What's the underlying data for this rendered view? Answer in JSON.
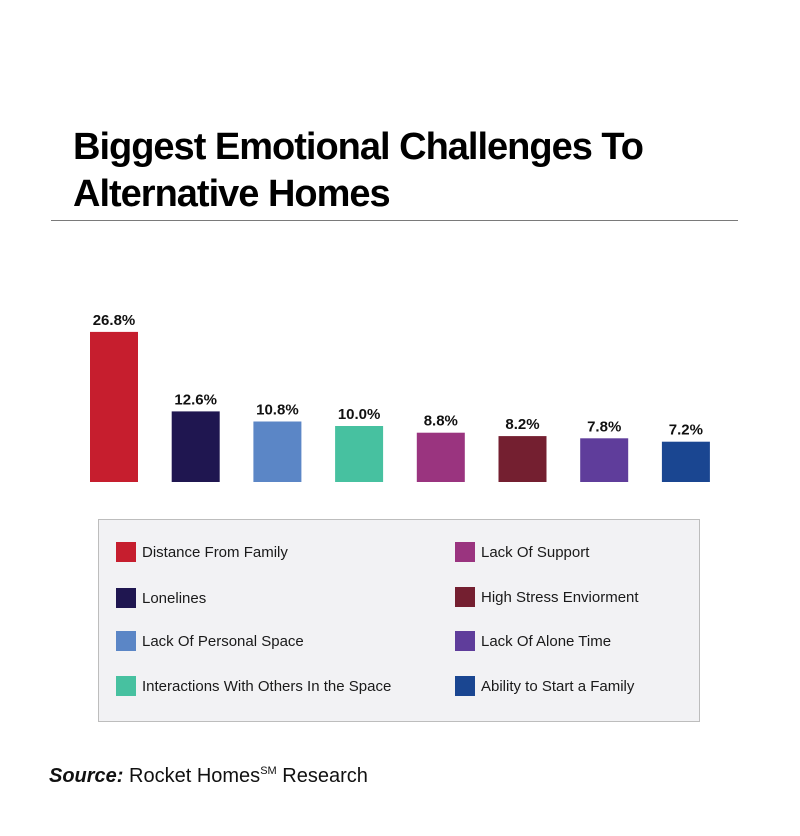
{
  "title_line1": "Biggest Emotional Challenges To",
  "title_line2": "Alternative Homes",
  "chart_data": {
    "type": "bar",
    "title": "Biggest Emotional Challenges To Alternative Homes",
    "categories": [
      "Distance From Family",
      "Lonelines",
      "Lack Of Personal Space",
      "Interactions With Others In the Space",
      "Lack Of Support",
      "High Stress Enviorment",
      "Lack Of Alone Time",
      "Ability to Start a Family"
    ],
    "values": [
      26.8,
      12.6,
      10.8,
      10.0,
      8.8,
      8.2,
      7.8,
      7.2
    ],
    "labels": [
      "26.8%",
      "12.6%",
      "10.8%",
      "10.0%",
      "8.8%",
      "8.2%",
      "7.8%",
      "7.2%"
    ],
    "colors": [
      "#c61e2e",
      "#1f1650",
      "#5b86c6",
      "#47c1a0",
      "#9a347f",
      "#741f30",
      "#5f3d9b",
      "#1a4691"
    ],
    "unit": "%",
    "legend_position": "bottom",
    "grid": false
  },
  "source": {
    "label": "Source:",
    "text": "Rocket Homes",
    "superscript": "SM",
    "suffix": "Research"
  }
}
